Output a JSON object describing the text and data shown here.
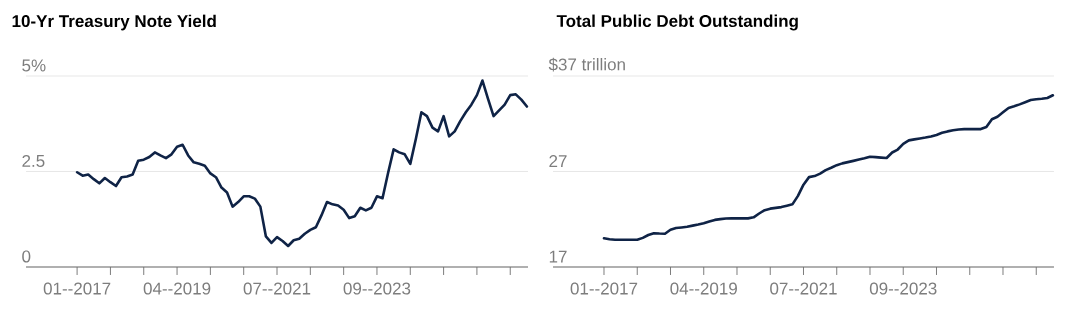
{
  "chart_data": [
    {
      "type": "line",
      "title": "10-Yr Treasury Note Yield",
      "categories": [
        "01--2017",
        null,
        null,
        null,
        null,
        null,
        null,
        null,
        null,
        null,
        null,
        null,
        null,
        null,
        null,
        null,
        null,
        null,
        "04--2019",
        null,
        null,
        null,
        null,
        null,
        null,
        null,
        null,
        null,
        null,
        null,
        null,
        null,
        null,
        null,
        null,
        null,
        "07--2021",
        null,
        null,
        null,
        null,
        null,
        null,
        null,
        null,
        null,
        null,
        null,
        null,
        null,
        null,
        null,
        null,
        null,
        "09--2023",
        null,
        null,
        null,
        null,
        null,
        null,
        null,
        null,
        null,
        null,
        null,
        null,
        null,
        null,
        null,
        null,
        null,
        null,
        null,
        null,
        null,
        null,
        null,
        null,
        null,
        null,
        null
      ],
      "series": [
        {
          "color": "#0f2346",
          "values": [
            2.48,
            2.39,
            2.42,
            2.3,
            2.19,
            2.33,
            2.22,
            2.12,
            2.35,
            2.37,
            2.42,
            2.78,
            2.81,
            2.88,
            3.0,
            2.92,
            2.85,
            2.95,
            3.15,
            3.2,
            2.92,
            2.74,
            2.7,
            2.65,
            2.45,
            2.35,
            2.08,
            1.95,
            1.58,
            1.7,
            1.85,
            1.85,
            1.79,
            1.58,
            0.8,
            0.63,
            0.78,
            0.68,
            0.55,
            0.7,
            0.74,
            0.87,
            0.97,
            1.04,
            1.35,
            1.7,
            1.64,
            1.61,
            1.5,
            1.28,
            1.33,
            1.55,
            1.48,
            1.55,
            1.85,
            1.8,
            2.46,
            3.08,
            3.0,
            2.95,
            2.7,
            3.35,
            4.05,
            3.95,
            3.65,
            3.55,
            3.95,
            3.42,
            3.55,
            3.82,
            4.05,
            4.25,
            4.5,
            4.88,
            4.4,
            3.95,
            4.1,
            4.25,
            4.5,
            4.52,
            4.38,
            4.2
          ]
        }
      ],
      "ylim": [
        0,
        5
      ],
      "yticks": [
        0,
        2.5,
        {
          "value": 5,
          "label": "5%"
        }
      ],
      "grid": "y"
    },
    {
      "type": "line",
      "title": "Total Public Debt Outstanding",
      "categories": [
        "01--2017",
        null,
        null,
        null,
        null,
        null,
        null,
        null,
        null,
        null,
        null,
        null,
        null,
        null,
        null,
        null,
        null,
        null,
        "04--2019",
        null,
        null,
        null,
        null,
        null,
        null,
        null,
        null,
        null,
        null,
        null,
        null,
        null,
        null,
        null,
        null,
        null,
        "07--2021",
        null,
        null,
        null,
        null,
        null,
        null,
        null,
        null,
        null,
        null,
        null,
        null,
        null,
        null,
        null,
        null,
        null,
        "09--2023",
        null,
        null,
        null,
        null,
        null,
        null,
        null,
        null,
        null,
        null,
        null,
        null,
        null,
        null,
        null,
        null,
        null,
        null,
        null,
        null,
        null,
        null,
        null,
        null,
        null,
        null,
        null
      ],
      "series": [
        {
          "color": "#0f2346",
          "values": [
            20.0,
            19.9,
            19.85,
            19.85,
            19.85,
            19.85,
            19.85,
            20.05,
            20.35,
            20.54,
            20.5,
            20.48,
            20.9,
            21.08,
            21.14,
            21.21,
            21.33,
            21.44,
            21.58,
            21.77,
            21.93,
            22.01,
            22.08,
            22.09,
            22.09,
            22.09,
            22.09,
            22.2,
            22.6,
            22.95,
            23.11,
            23.19,
            23.27,
            23.41,
            23.56,
            24.45,
            25.62,
            26.41,
            26.52,
            26.78,
            27.14,
            27.39,
            27.66,
            27.85,
            27.98,
            28.11,
            28.25,
            28.39,
            28.55,
            28.5,
            28.45,
            28.41,
            28.99,
            29.3,
            29.9,
            30.26,
            30.36,
            30.45,
            30.55,
            30.67,
            30.83,
            31.05,
            31.2,
            31.31,
            31.4,
            31.44,
            31.44,
            31.44,
            31.44,
            31.65,
            32.47,
            32.73,
            33.2,
            33.65,
            33.83,
            34.03,
            34.25,
            34.48,
            34.56,
            34.62,
            34.7,
            34.98
          ]
        }
      ],
      "ylim": [
        17,
        37
      ],
      "yticks": [
        17,
        27,
        {
          "value": 37,
          "label": "$37 trillion"
        }
      ],
      "grid": "y"
    }
  ]
}
